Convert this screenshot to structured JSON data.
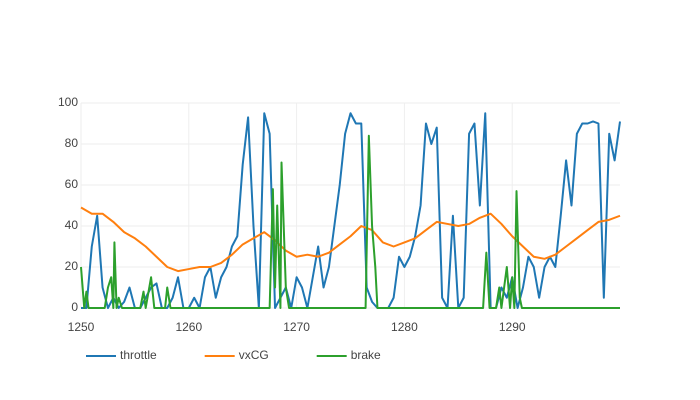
{
  "chart_data": {
    "type": "line",
    "xlim": [
      1250,
      1300
    ],
    "ylim": [
      0,
      100
    ],
    "xticks": [
      1250,
      1260,
      1270,
      1280,
      1290
    ],
    "yticks": [
      0,
      20,
      40,
      60,
      80,
      100
    ],
    "grid": true,
    "legend": "bottom-left",
    "series": [
      {
        "name": "throttle",
        "color": "#1f77b4",
        "x": [
          1250,
          1250.5,
          1251,
          1251.5,
          1252,
          1252.5,
          1253,
          1253.5,
          1254,
          1254.5,
          1255,
          1255.5,
          1256,
          1256.5,
          1257,
          1257.5,
          1258,
          1258.5,
          1259,
          1259.5,
          1260,
          1260.5,
          1261,
          1261.5,
          1262,
          1262.5,
          1263,
          1263.5,
          1264,
          1264.5,
          1265,
          1265.5,
          1266,
          1266.5,
          1267,
          1267.5,
          1268,
          1268.5,
          1269,
          1269.5,
          1270,
          1270.5,
          1271,
          1271.5,
          1272,
          1272.5,
          1273,
          1273.5,
          1274,
          1274.5,
          1275,
          1275.5,
          1276,
          1276.5,
          1277,
          1277.5,
          1278,
          1278.5,
          1279,
          1279.5,
          1280,
          1280.5,
          1281,
          1281.5,
          1282,
          1282.5,
          1283,
          1283.5,
          1284,
          1284.5,
          1285,
          1285.5,
          1286,
          1286.5,
          1287,
          1287.5,
          1288,
          1288.5,
          1289,
          1289.5,
          1290,
          1290.5,
          1291,
          1291.5,
          1292,
          1292.5,
          1293,
          1293.5,
          1294,
          1294.5,
          1295,
          1295.5,
          1296,
          1296.5,
          1297,
          1297.5,
          1298,
          1298.5,
          1299,
          1299.5,
          1300
        ],
        "values": [
          0,
          0,
          30,
          45,
          10,
          0,
          5,
          0,
          3,
          10,
          0,
          0,
          5,
          10,
          12,
          0,
          0,
          5,
          15,
          0,
          0,
          5,
          0,
          15,
          20,
          5,
          15,
          20,
          30,
          35,
          70,
          93,
          40,
          0,
          95,
          85,
          0,
          5,
          10,
          0,
          15,
          10,
          0,
          15,
          30,
          10,
          20,
          40,
          60,
          85,
          95,
          90,
          90,
          10,
          3,
          0,
          0,
          0,
          5,
          25,
          20,
          25,
          35,
          50,
          90,
          80,
          88,
          5,
          0,
          45,
          0,
          5,
          85,
          90,
          50,
          95,
          0,
          0,
          10,
          5,
          15,
          0,
          10,
          25,
          20,
          5,
          20,
          25,
          20,
          45,
          72,
          50,
          85,
          90,
          90,
          91,
          90,
          5,
          85,
          72,
          91
        ]
      },
      {
        "name": "vxCG",
        "color": "#ff7f0e",
        "x": [
          1250,
          1251,
          1252,
          1253,
          1254,
          1255,
          1256,
          1257,
          1258,
          1259,
          1260,
          1261,
          1262,
          1263,
          1264,
          1265,
          1266,
          1267,
          1268,
          1269,
          1270,
          1271,
          1272,
          1273,
          1274,
          1275,
          1276,
          1277,
          1278,
          1279,
          1280,
          1281,
          1282,
          1283,
          1284,
          1285,
          1286,
          1287,
          1288,
          1289,
          1290,
          1291,
          1292,
          1293,
          1294,
          1295,
          1296,
          1297,
          1298,
          1299,
          1300
        ],
        "values": [
          49,
          46,
          46,
          42,
          37,
          34,
          30,
          25,
          20,
          18,
          19,
          20,
          20,
          22,
          26,
          31,
          34,
          37,
          33,
          28,
          25,
          26,
          25,
          27,
          31,
          35,
          40,
          38,
          32,
          30,
          32,
          34,
          38,
          42,
          41,
          40,
          41,
          44,
          46,
          41,
          35,
          30,
          25,
          24,
          26,
          30,
          34,
          38,
          42,
          43,
          45
        ]
      },
      {
        "name": "brake",
        "color": "#2ca02c",
        "x": [
          1250,
          1250.3,
          1250.5,
          1250.7,
          1252.2,
          1252.5,
          1252.8,
          1253,
          1253.1,
          1253.3,
          1253.5,
          1253.8,
          1255.5,
          1255.8,
          1256,
          1256.5,
          1256.8,
          1257.8,
          1258,
          1258.3,
          1267.5,
          1267.8,
          1268,
          1268.2,
          1268.5,
          1268.6,
          1269,
          1269.3,
          1276.4,
          1276.7,
          1277,
          1277.3,
          1277.5,
          1287.3,
          1287.6,
          1287.9,
          1288.5,
          1288.8,
          1289,
          1289.5,
          1289.8,
          1290,
          1290.2,
          1290.4,
          1290.7,
          1290.9,
          1300
        ],
        "values": [
          20,
          0,
          8,
          0,
          0,
          10,
          15,
          0,
          32,
          0,
          5,
          0,
          0,
          8,
          0,
          15,
          0,
          0,
          10,
          0,
          0,
          58,
          10,
          50,
          0,
          71,
          10,
          0,
          0,
          84,
          40,
          20,
          0,
          0,
          27,
          0,
          0,
          10,
          0,
          20,
          0,
          15,
          0,
          57,
          5,
          0,
          0
        ]
      }
    ]
  }
}
